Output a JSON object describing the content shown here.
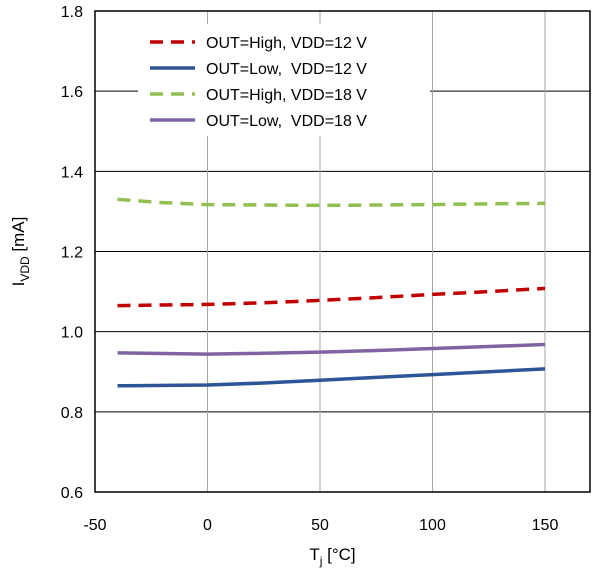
{
  "chart_data": {
    "type": "line",
    "title": "",
    "xlabel": {
      "main": "T",
      "sub": "j",
      "unit": " [°C]"
    },
    "ylabel": {
      "main": "I",
      "sub": "VDD",
      "unit": " [mA]"
    },
    "xlim": [
      -50,
      170
    ],
    "ylim": [
      0.6,
      1.8
    ],
    "x_ticks": [
      -50,
      0,
      50,
      100,
      150
    ],
    "x_tick_labels": [
      "-50",
      "0",
      "50",
      "100",
      "150"
    ],
    "y_ticks": [
      0.6,
      0.8,
      1.0,
      1.2,
      1.4,
      1.6,
      1.8
    ],
    "y_tick_labels": [
      "0.6",
      "0.8",
      "1.0",
      "1.2",
      "1.4",
      "1.6",
      "1.8"
    ],
    "grid": true,
    "legend_position": "top-left",
    "series": [
      {
        "name": "OUT=High, VDD=12 V",
        "color": "#c00000",
        "style": "dashed",
        "x": [
          -40,
          0,
          25,
          50,
          75,
          100,
          125,
          150
        ],
        "values": [
          1.065,
          1.068,
          1.072,
          1.078,
          1.085,
          1.093,
          1.1,
          1.108
        ]
      },
      {
        "name": "OUT=Low,  VDD=12 V",
        "color": "#2e5597",
        "style": "solid",
        "x": [
          -40,
          0,
          25,
          50,
          75,
          100,
          125,
          150
        ],
        "values": [
          0.865,
          0.867,
          0.872,
          0.879,
          0.886,
          0.893,
          0.9,
          0.907
        ]
      },
      {
        "name": "OUT=High, VDD=18 V",
        "color": "#92c050",
        "style": "dashed",
        "x": [
          -40,
          -20,
          0,
          25,
          50,
          75,
          100,
          125,
          150
        ],
        "values": [
          1.33,
          1.322,
          1.317,
          1.316,
          1.315,
          1.316,
          1.317,
          1.319,
          1.32
        ]
      },
      {
        "name": "OUT=Low,  VDD=18 V",
        "color": "#8064a2",
        "style": "solid",
        "x": [
          -40,
          0,
          25,
          50,
          75,
          100,
          125,
          150
        ],
        "values": [
          0.947,
          0.944,
          0.946,
          0.949,
          0.953,
          0.958,
          0.963,
          0.968
        ]
      }
    ]
  }
}
